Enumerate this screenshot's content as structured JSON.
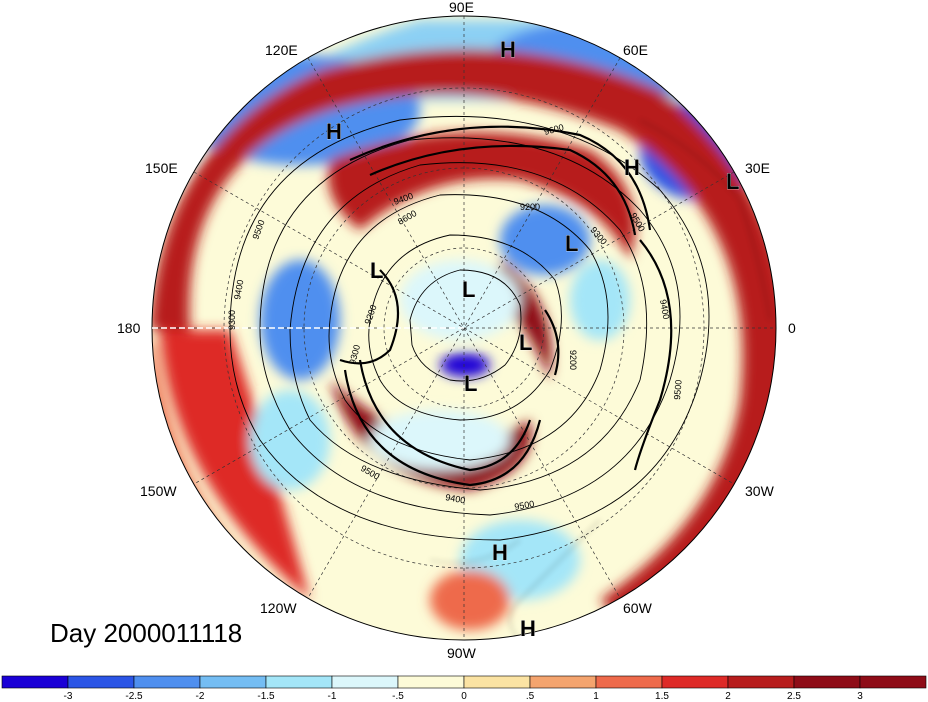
{
  "day_label": "Day 2000011118",
  "longitude_labels": [
    {
      "id": "lon-90e",
      "text": "90E"
    },
    {
      "id": "lon-60e",
      "text": "60E"
    },
    {
      "id": "lon-30e",
      "text": "30E"
    },
    {
      "id": "lon-0",
      "text": "0"
    },
    {
      "id": "lon-30w",
      "text": "30W"
    },
    {
      "id": "lon-60w",
      "text": "60W"
    },
    {
      "id": "lon-90w",
      "text": "90W"
    },
    {
      "id": "lon-120w",
      "text": "120W"
    },
    {
      "id": "lon-150w",
      "text": "150W"
    },
    {
      "id": "lon-180",
      "text": "180"
    },
    {
      "id": "lon-150e",
      "text": "150E"
    },
    {
      "id": "lon-120e",
      "text": "120E"
    }
  ],
  "pressure_centers": [
    {
      "id": "h-top",
      "text": "H"
    },
    {
      "id": "h-120e",
      "text": "H"
    },
    {
      "id": "h-45e",
      "text": "H"
    },
    {
      "id": "l-30e",
      "text": "L"
    },
    {
      "id": "l-center-upper",
      "text": "L"
    },
    {
      "id": "l-pole",
      "text": "L"
    },
    {
      "id": "l-right-of-pole",
      "text": "L"
    },
    {
      "id": "l-160e",
      "text": "L"
    },
    {
      "id": "l-below-pole",
      "text": "L"
    },
    {
      "id": "h-90w-upper",
      "text": "H"
    },
    {
      "id": "h-90w-lower",
      "text": "H"
    }
  ],
  "contour_labels": [
    "9500",
    "9400",
    "9300",
    "9200",
    "8600",
    "9500",
    "9400",
    "9500",
    "9200",
    "9600",
    "9500",
    "9400",
    "9500",
    "9300",
    "9200",
    "9300",
    "9400"
  ],
  "colorbar": {
    "colors": [
      "#1a00d6",
      "#2b55e6",
      "#4f8fef",
      "#74bdf3",
      "#a4e6f8",
      "#dcf7fb",
      "#fdfbd8",
      "#fbe3a3",
      "#f4a46e",
      "#ee6a4b",
      "#de2a27",
      "#b71c1c",
      "#8e0c17"
    ],
    "tick_labels": [
      "-3",
      "-2.5",
      "-2",
      "-1.5",
      "-1",
      "-.5",
      "0",
      ".5",
      "1",
      "1.5",
      "2",
      "2.5",
      "3"
    ]
  }
}
